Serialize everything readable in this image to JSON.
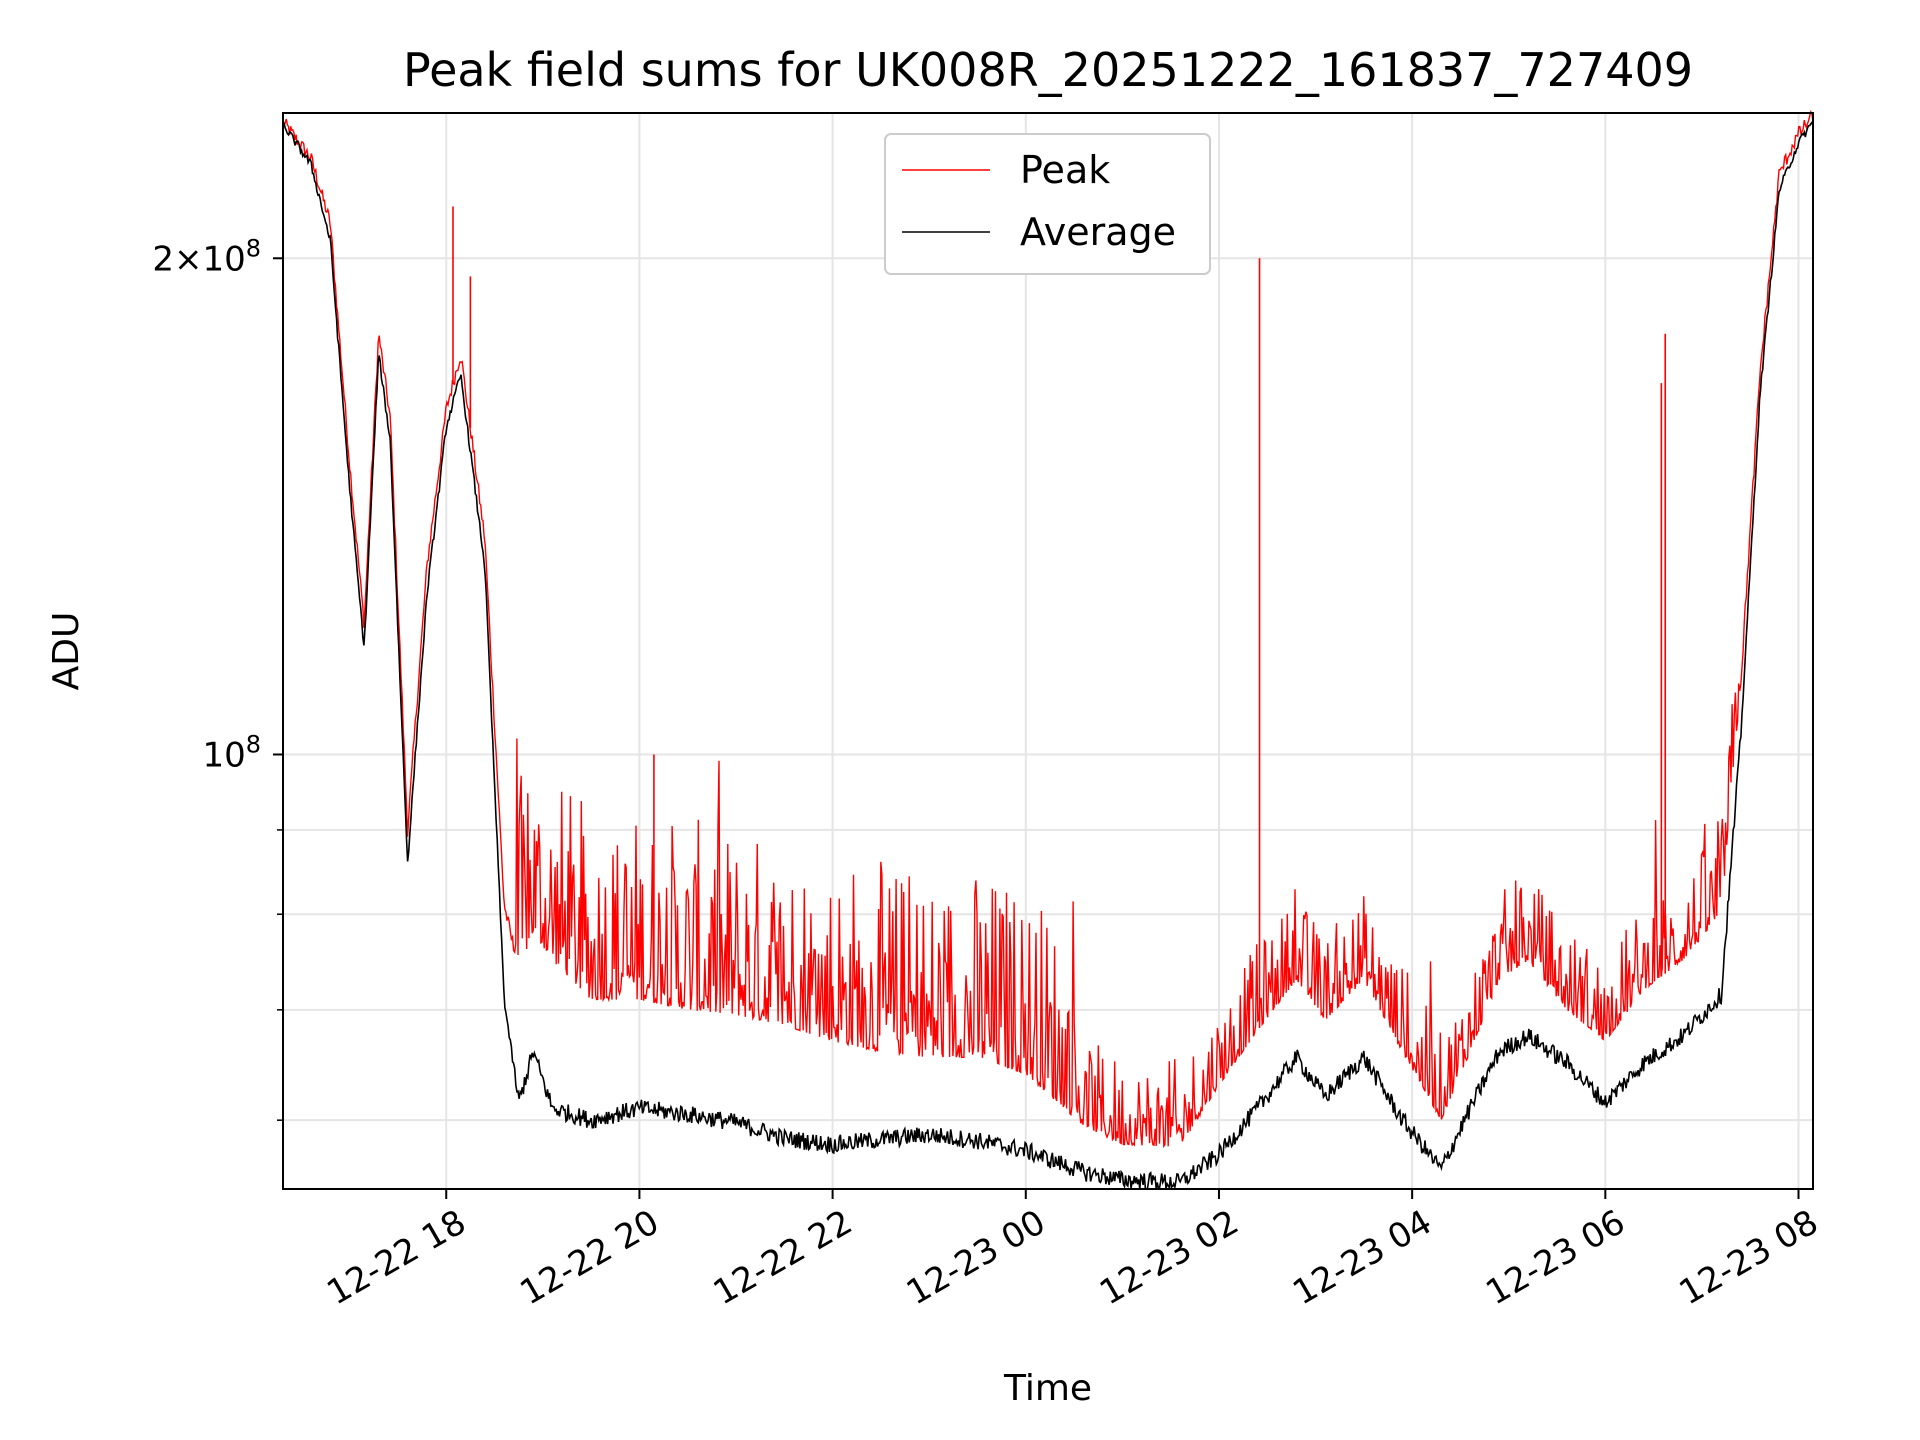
{
  "chart_data": {
    "type": "line",
    "title": "Peak field sums for UK008R_20251222_161837_727409",
    "xlabel": "Time",
    "ylabel": "ADU",
    "yscale": "log",
    "ylim": [
      54500000,
      245000000
    ],
    "xlim_hours": [
      16.31,
      32.15
    ],
    "grid": true,
    "legend_position": "top-center",
    "x_ticks": [
      {
        "label": "12-22 18",
        "hour": 18
      },
      {
        "label": "12-22 20",
        "hour": 20
      },
      {
        "label": "12-22 22",
        "hour": 22
      },
      {
        "label": "12-23 00",
        "hour": 24
      },
      {
        "label": "12-23 02",
        "hour": 26
      },
      {
        "label": "12-23 04",
        "hour": 28
      },
      {
        "label": "12-23 06",
        "hour": 30
      },
      {
        "label": "12-23 08",
        "hour": 32
      }
    ],
    "y_ticks": [
      {
        "value": 200000000,
        "mantissa": "2",
        "times": "×",
        "base": "10",
        "exp": "8"
      },
      {
        "value": 100000000,
        "mantissa": "",
        "times": "",
        "base": "10",
        "exp": "8"
      }
    ],
    "y_minor_ticks": [
      60000000,
      70000000,
      80000000,
      90000000
    ],
    "series": [
      {
        "name": "Peak",
        "color": "#ff0000",
        "x_hours": [
          16.31,
          16.6,
          16.8,
          17.0,
          17.15,
          17.3,
          17.42,
          17.6,
          17.8,
          18.0,
          18.15,
          18.4,
          18.6,
          18.75,
          18.9,
          19.1,
          19.5,
          20.0,
          20.5,
          21.0,
          21.5,
          22.0,
          22.5,
          23.0,
          23.5,
          24.0,
          24.6,
          25.0,
          25.6,
          26.0,
          26.4,
          26.8,
          27.1,
          27.5,
          27.9,
          28.3,
          28.6,
          28.9,
          29.2,
          29.6,
          30.0,
          30.4,
          30.8,
          31.2,
          31.4,
          31.6,
          31.8,
          32.0,
          32.15
        ],
        "y_values": [
          242000000,
          230000000,
          210000000,
          150000000,
          120000000,
          180000000,
          160000000,
          90000000,
          130000000,
          162000000,
          175000000,
          135000000,
          81000000,
          74000000,
          78000000,
          75000000,
          71000000,
          71000000,
          70000000,
          69500000,
          68500000,
          67000000,
          66000000,
          65500000,
          65500000,
          64000000,
          59500000,
          58000000,
          57800000,
          63000000,
          68000000,
          73000000,
          69000000,
          73000000,
          66000000,
          60000000,
          66000000,
          73000000,
          75000000,
          70000000,
          67000000,
          72000000,
          75000000,
          80000000,
          110000000,
          170000000,
          225000000,
          238000000,
          244000000
        ],
        "spikes": [
          {
            "hour": 18.07,
            "value": 215000000
          },
          {
            "hour": 18.25,
            "value": 195000000
          },
          {
            "hour": 20.15,
            "value": 100000000
          },
          {
            "hour": 26.42,
            "value": 200000000
          },
          {
            "hour": 30.58,
            "value": 168000000
          },
          {
            "hour": 30.62,
            "value": 180000000
          }
        ]
      },
      {
        "name": "Average",
        "color": "#000000",
        "x_hours": [
          16.31,
          16.6,
          16.8,
          17.0,
          17.15,
          17.3,
          17.42,
          17.6,
          17.8,
          18.0,
          18.15,
          18.4,
          18.6,
          18.75,
          18.9,
          19.1,
          19.5,
          20.0,
          20.5,
          21.0,
          21.5,
          22.0,
          22.5,
          23.0,
          23.5,
          24.0,
          24.6,
          25.0,
          25.6,
          26.0,
          26.4,
          26.8,
          27.1,
          27.5,
          27.9,
          28.3,
          28.6,
          28.9,
          29.2,
          29.6,
          30.0,
          30.4,
          30.8,
          31.2,
          31.4,
          31.6,
          31.8,
          32.0,
          32.15
        ],
        "y_values": [
          241000000,
          228000000,
          205000000,
          145000000,
          116000000,
          175000000,
          155000000,
          86000000,
          125000000,
          158000000,
          170000000,
          130000000,
          71000000,
          61500000,
          66000000,
          61000000,
          60000000,
          61000000,
          60500000,
          59800000,
          58500000,
          58000000,
          58400000,
          58800000,
          58300000,
          57500000,
          55800000,
          55200000,
          55000000,
          57200000,
          61000000,
          65500000,
          62000000,
          65500000,
          60000000,
          56000000,
          61000000,
          66000000,
          67500000,
          65000000,
          61500000,
          65000000,
          67500000,
          71500000,
          102000000,
          165000000,
          220000000,
          235000000,
          242000000
        ]
      }
    ]
  }
}
